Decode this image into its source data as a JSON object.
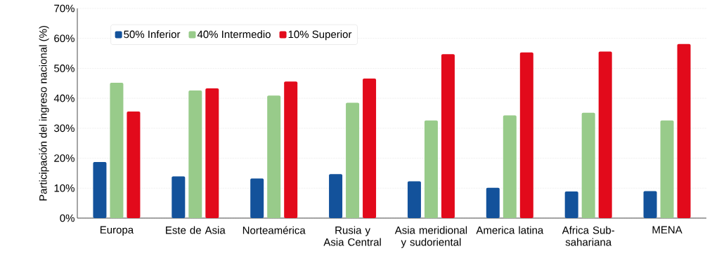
{
  "chart_data": {
    "type": "bar",
    "ylabel": "Participación del ingreso nacional  (%)",
    "categories": [
      "Europa",
      "Este de Asia",
      "Norteamérica",
      "Rusia y Asia Central",
      "Asia meridional y sudoriental",
      "America latina",
      "Africa Sub-sahariana",
      "MENA"
    ],
    "series": [
      {
        "name": "50% Inferior",
        "color": "#13529b",
        "values": [
          18.7,
          13.9,
          13.2,
          14.7,
          12.3,
          10.1,
          8.9,
          9.0
        ]
      },
      {
        "name": "40% Intermedio",
        "color": "#98cb8a",
        "values": [
          45.2,
          42.6,
          40.9,
          38.5,
          32.6,
          34.3,
          35.2,
          32.6
        ]
      },
      {
        "name": "10% Superior",
        "color": "#e20a1b",
        "values": [
          35.6,
          43.3,
          45.6,
          46.6,
          54.7,
          55.3,
          55.6,
          58.1
        ]
      }
    ],
    "ylim": [
      0,
      70
    ],
    "yticks": [
      {
        "value": 0,
        "label": "0%"
      },
      {
        "value": 10,
        "label": "10%"
      },
      {
        "value": 20,
        "label": "20%"
      },
      {
        "value": 30,
        "label": "30%"
      },
      {
        "value": 40,
        "label": "40%"
      },
      {
        "value": 50,
        "label": "50%"
      },
      {
        "value": 60,
        "label": "60%"
      },
      {
        "value": 70,
        "label": "70%"
      }
    ],
    "grid": "y",
    "legend": "top left"
  }
}
